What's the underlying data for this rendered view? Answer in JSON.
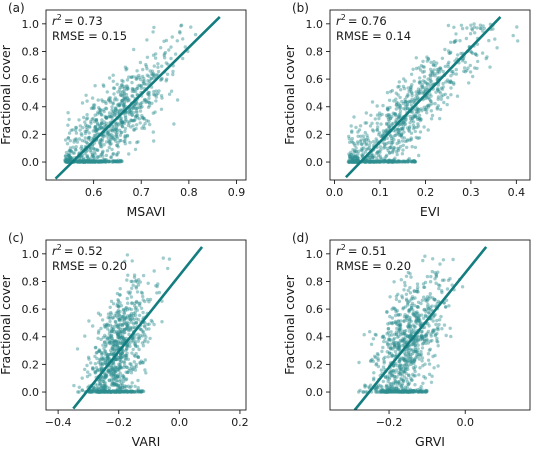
{
  "style": {
    "point_color": "#2f8f91",
    "line_color": "#137d7f",
    "axis_color": "#1a1a1a"
  },
  "chart_data": [
    {
      "type": "scatter",
      "panel_label": "(a)",
      "xlabel": "MSAVI",
      "ylabel": "Fractional cover",
      "stats": {
        "r2_prefix": "r",
        "r2_value": "= 0.73",
        "rmse": "RMSE = 0.15"
      },
      "xlim": [
        0.5,
        0.92
      ],
      "ylim": [
        -0.13,
        1.1
      ],
      "xticks": [
        0.6,
        0.7,
        0.8,
        0.9
      ],
      "xtick_labels": [
        "0.6",
        "0.7",
        "0.8",
        "0.9"
      ],
      "yticks": [
        0.0,
        0.2,
        0.4,
        0.6,
        0.8,
        1.0
      ],
      "ytick_labels": [
        "0.0",
        "0.2",
        "0.4",
        "0.6",
        "0.8",
        "1.0"
      ],
      "fit_line": {
        "x": [
          0.52,
          0.865
        ],
        "y": [
          -0.12,
          1.05
        ]
      },
      "cloud": {
        "n": 950,
        "x_center": 0.64,
        "x_spread": 0.055,
        "x_min": 0.54,
        "x_max": 0.9,
        "slope": 3.39,
        "intercept": -1.88,
        "noise": 0.15,
        "zero_frac": 0.17,
        "zero_x": [
          0.54,
          0.66
        ]
      }
    },
    {
      "type": "scatter",
      "panel_label": "(b)",
      "xlabel": "EVI",
      "ylabel": "Fractional cover",
      "stats": {
        "r2_prefix": "r",
        "r2_value": "= 0.76",
        "rmse": "RMSE = 0.14"
      },
      "xlim": [
        -0.01,
        0.43
      ],
      "ylim": [
        -0.13,
        1.1
      ],
      "xticks": [
        0.0,
        0.1,
        0.2,
        0.3,
        0.4
      ],
      "xtick_labels": [
        "0.0",
        "0.1",
        "0.2",
        "0.3",
        "0.4"
      ],
      "yticks": [
        0.0,
        0.2,
        0.4,
        0.6,
        0.8,
        1.0
      ],
      "ytick_labels": [
        "0.0",
        "0.2",
        "0.4",
        "0.6",
        "0.8",
        "1.0"
      ],
      "fit_line": {
        "x": [
          0.025,
          0.365
        ],
        "y": [
          -0.11,
          1.05
        ]
      },
      "cloud": {
        "n": 950,
        "x_center": 0.15,
        "x_spread": 0.075,
        "x_min": 0.03,
        "x_max": 0.41,
        "slope": 3.41,
        "intercept": -0.195,
        "noise": 0.14,
        "zero_frac": 0.17,
        "zero_x": [
          0.04,
          0.18
        ]
      }
    },
    {
      "type": "scatter",
      "panel_label": "(c)",
      "xlabel": "VARI",
      "ylabel": "Fractional cover",
      "stats": {
        "r2_prefix": "r",
        "r2_value": "= 0.52",
        "rmse": "RMSE = 0.20"
      },
      "xlim": [
        -0.44,
        0.22
      ],
      "ylim": [
        -0.13,
        1.1
      ],
      "xticks": [
        -0.4,
        -0.2,
        0.0,
        0.2
      ],
      "xtick_labels": [
        "−0.4",
        "−0.2",
        "0.0",
        "0.2"
      ],
      "yticks": [
        0.0,
        0.2,
        0.4,
        0.6,
        0.8,
        1.0
      ],
      "ytick_labels": [
        "0.0",
        "0.2",
        "0.4",
        "0.6",
        "0.8",
        "1.0"
      ],
      "fit_line": {
        "x": [
          -0.35,
          0.075
        ],
        "y": [
          -0.12,
          1.05
        ]
      },
      "cloud": {
        "n": 950,
        "x_center": -0.2,
        "x_spread": 0.045,
        "x_min": -0.37,
        "x_max": 0.17,
        "slope": 2.75,
        "intercept": 0.843,
        "noise": 0.2,
        "zero_frac": 0.17,
        "zero_x": [
          -0.3,
          -0.12
        ]
      }
    },
    {
      "type": "scatter",
      "panel_label": "(d)",
      "xlabel": "GRVI",
      "ylabel": "Fractional cover",
      "stats": {
        "r2_prefix": "r",
        "r2_value": "= 0.51",
        "rmse": "RMSE = 0.20"
      },
      "xlim": [
        -0.355,
        0.17
      ],
      "ylim": [
        -0.13,
        1.1
      ],
      "xticks": [
        -0.2,
        0.0
      ],
      "xtick_labels": [
        "−0.2",
        "0.0"
      ],
      "yticks": [
        0.0,
        0.2,
        0.4,
        0.6,
        0.8,
        1.0
      ],
      "ytick_labels": [
        "0.0",
        "0.2",
        "0.4",
        "0.6",
        "0.8",
        "1.0"
      ],
      "fit_line": {
        "x": [
          -0.29,
          0.055
        ],
        "y": [
          -0.13,
          1.05
        ]
      },
      "cloud": {
        "n": 950,
        "x_center": -0.15,
        "x_spread": 0.04,
        "x_min": -0.28,
        "x_max": 0.14,
        "slope": 3.42,
        "intercept": 0.86,
        "noise": 0.2,
        "zero_frac": 0.17,
        "zero_x": [
          -0.22,
          -0.1
        ]
      }
    }
  ]
}
